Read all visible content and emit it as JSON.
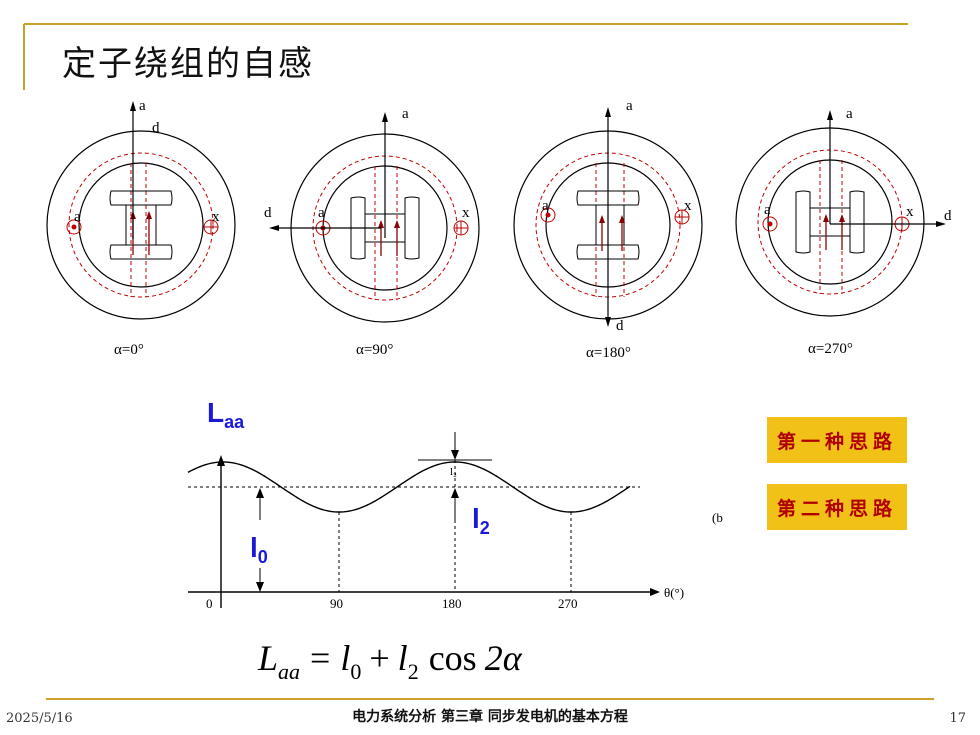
{
  "slide": {
    "title": "定子绕组的自感",
    "date": "2025/5/16",
    "footer": "电力系统分析    第三章 同步发电机的基本方程",
    "page_number": "17"
  },
  "rotors": [
    {
      "caption": "α=0°",
      "axis_a": "a",
      "axis_d": "d",
      "left_label": "a",
      "right_label": "x"
    },
    {
      "caption": "α=90°",
      "axis_a": "a",
      "axis_d": "d",
      "left_label": "a",
      "right_label": "x"
    },
    {
      "caption": "α=180°",
      "axis_a": "a",
      "axis_d": "d",
      "left_label": "a",
      "right_label": "x"
    },
    {
      "caption": "α=270°",
      "axis_a": "a",
      "axis_d": "d",
      "left_label": "a",
      "right_label": "x"
    }
  ],
  "graph": {
    "y_label": "L",
    "y_label_sub": "aa",
    "l0_label": "l",
    "l0_sub": "0",
    "l2_label": "l",
    "l2_sub": "2",
    "small_l2": "l₂",
    "x_ticks": [
      "0",
      "90",
      "180",
      "270"
    ],
    "x_axis_label": "θ(°)",
    "side_mark": "(b"
  },
  "formula": {
    "L": "L",
    "L_sub": "aa",
    "eq": "=",
    "l0": "l",
    "l0_sub": "0",
    "plus": "+",
    "l2": "l",
    "l2_sub": "2",
    "cos": "cos",
    "arg": "2α"
  },
  "buttons": {
    "first_idea": "第一种思路",
    "second_idea": "第二种思路"
  },
  "colors": {
    "accent_line": "#c9a227",
    "button_bg": "#f2c118",
    "button_text": "#b00000",
    "label_blue": "#1a1ad6",
    "dashed_red": "#c00000",
    "arrow_dark_red": "#8b0000"
  }
}
